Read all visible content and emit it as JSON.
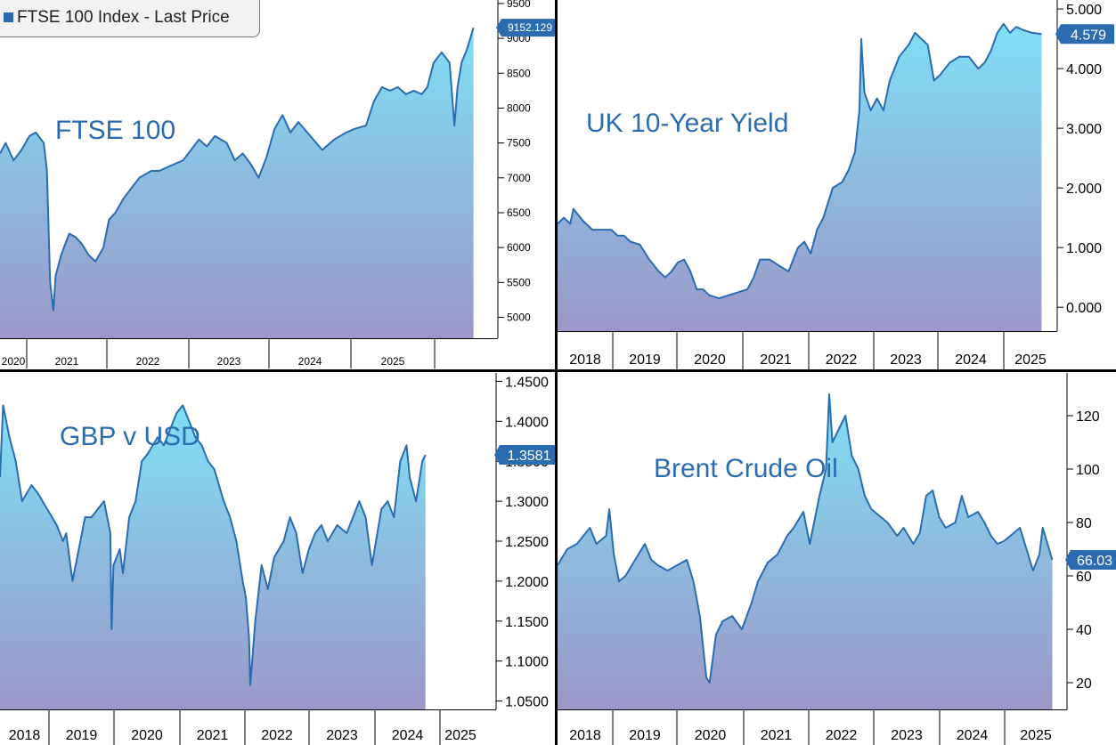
{
  "legend": {
    "label": "FTSE 100 Index - Last Price",
    "color": "#2b6cb0"
  },
  "style": {
    "line_color": "#2b6cb0",
    "fill_top": "#7fe0f5",
    "fill_bottom": "#9b97c8",
    "label_color": "#2b6cb0"
  },
  "chart_data": [
    {
      "type": "area",
      "title": "FTSE 100",
      "x_tick_labels": [
        "2020",
        "2021",
        "2022",
        "2023",
        "2024",
        "2025"
      ],
      "y_tick_labels": [
        "5000",
        "5500",
        "6000",
        "6500",
        "7000",
        "7500",
        "8000",
        "8500",
        "9000",
        "9500"
      ],
      "ylim": [
        4700,
        9550
      ],
      "last_value": "9152.129",
      "x_start": 2019.55,
      "x_end": 2025.5,
      "points": [
        [
          2019.55,
          7350
        ],
        [
          2019.62,
          7500
        ],
        [
          2019.72,
          7250
        ],
        [
          2019.82,
          7400
        ],
        [
          2019.92,
          7600
        ],
        [
          2020.0,
          7650
        ],
        [
          2020.1,
          7500
        ],
        [
          2020.14,
          7100
        ],
        [
          2020.18,
          5500
        ],
        [
          2020.22,
          5100
        ],
        [
          2020.25,
          5600
        ],
        [
          2020.32,
          5900
        ],
        [
          2020.42,
          6200
        ],
        [
          2020.5,
          6150
        ],
        [
          2020.58,
          6050
        ],
        [
          2020.66,
          5900
        ],
        [
          2020.75,
          5800
        ],
        [
          2020.85,
          6000
        ],
        [
          2020.92,
          6400
        ],
        [
          2021.0,
          6500
        ],
        [
          2021.1,
          6700
        ],
        [
          2021.2,
          6850
        ],
        [
          2021.3,
          7000
        ],
        [
          2021.45,
          7100
        ],
        [
          2021.55,
          7100
        ],
        [
          2021.65,
          7150
        ],
        [
          2021.75,
          7200
        ],
        [
          2021.85,
          7250
        ],
        [
          2021.95,
          7400
        ],
        [
          2022.05,
          7550
        ],
        [
          2022.15,
          7450
        ],
        [
          2022.25,
          7600
        ],
        [
          2022.4,
          7500
        ],
        [
          2022.5,
          7250
        ],
        [
          2022.6,
          7350
        ],
        [
          2022.7,
          7200
        ],
        [
          2022.8,
          7000
        ],
        [
          2022.9,
          7300
        ],
        [
          2023.0,
          7700
        ],
        [
          2023.1,
          7900
        ],
        [
          2023.2,
          7650
        ],
        [
          2023.3,
          7800
        ],
        [
          2023.45,
          7600
        ],
        [
          2023.6,
          7400
        ],
        [
          2023.75,
          7550
        ],
        [
          2023.9,
          7650
        ],
        [
          2024.0,
          7700
        ],
        [
          2024.15,
          7750
        ],
        [
          2024.25,
          8100
        ],
        [
          2024.35,
          8300
        ],
        [
          2024.45,
          8250
        ],
        [
          2024.55,
          8300
        ],
        [
          2024.65,
          8200
        ],
        [
          2024.75,
          8250
        ],
        [
          2024.85,
          8200
        ],
        [
          2024.92,
          8300
        ],
        [
          2025.0,
          8650
        ],
        [
          2025.1,
          8800
        ],
        [
          2025.2,
          8650
        ],
        [
          2025.26,
          7750
        ],
        [
          2025.3,
          8300
        ],
        [
          2025.35,
          8650
        ],
        [
          2025.42,
          8850
        ],
        [
          2025.5,
          9152
        ]
      ]
    },
    {
      "type": "area",
      "title": "UK 10-Year Yield",
      "x_tick_labels": [
        "2018",
        "2019",
        "2020",
        "2021",
        "2022",
        "2023",
        "2024",
        "2025"
      ],
      "y_tick_labels": [
        "0.000",
        "1.000",
        "2.000",
        "3.000",
        "4.000",
        "5.000"
      ],
      "ylim": [
        -0.4,
        5.15
      ],
      "last_value": "4.579",
      "x_start": 2017.95,
      "x_end": 2025.6,
      "points": [
        [
          2017.95,
          1.4
        ],
        [
          2018.05,
          1.5
        ],
        [
          2018.15,
          1.4
        ],
        [
          2018.2,
          1.65
        ],
        [
          2018.35,
          1.45
        ],
        [
          2018.5,
          1.3
        ],
        [
          2018.65,
          1.3
        ],
        [
          2018.8,
          1.3
        ],
        [
          2018.9,
          1.2
        ],
        [
          2019.0,
          1.2
        ],
        [
          2019.1,
          1.1
        ],
        [
          2019.25,
          1.05
        ],
        [
          2019.4,
          0.8
        ],
        [
          2019.55,
          0.6
        ],
        [
          2019.65,
          0.5
        ],
        [
          2019.75,
          0.6
        ],
        [
          2019.85,
          0.75
        ],
        [
          2019.95,
          0.8
        ],
        [
          2020.05,
          0.6
        ],
        [
          2020.15,
          0.3
        ],
        [
          2020.25,
          0.3
        ],
        [
          2020.35,
          0.2
        ],
        [
          2020.5,
          0.15
        ],
        [
          2020.65,
          0.2
        ],
        [
          2020.8,
          0.25
        ],
        [
          2020.95,
          0.3
        ],
        [
          2021.05,
          0.5
        ],
        [
          2021.15,
          0.8
        ],
        [
          2021.3,
          0.8
        ],
        [
          2021.45,
          0.7
        ],
        [
          2021.6,
          0.6
        ],
        [
          2021.75,
          1.0
        ],
        [
          2021.85,
          1.1
        ],
        [
          2021.95,
          0.9
        ],
        [
          2022.05,
          1.3
        ],
        [
          2022.15,
          1.5
        ],
        [
          2022.3,
          2.0
        ],
        [
          2022.45,
          2.1
        ],
        [
          2022.55,
          2.3
        ],
        [
          2022.65,
          2.6
        ],
        [
          2022.72,
          3.3
        ],
        [
          2022.75,
          4.5
        ],
        [
          2022.8,
          3.6
        ],
        [
          2022.9,
          3.3
        ],
        [
          2023.0,
          3.5
        ],
        [
          2023.1,
          3.3
        ],
        [
          2023.2,
          3.8
        ],
        [
          2023.35,
          4.2
        ],
        [
          2023.5,
          4.4
        ],
        [
          2023.6,
          4.6
        ],
        [
          2023.7,
          4.5
        ],
        [
          2023.8,
          4.4
        ],
        [
          2023.9,
          3.8
        ],
        [
          2024.0,
          3.9
        ],
        [
          2024.15,
          4.1
        ],
        [
          2024.3,
          4.2
        ],
        [
          2024.45,
          4.2
        ],
        [
          2024.6,
          4.0
        ],
        [
          2024.7,
          4.1
        ],
        [
          2024.8,
          4.3
        ],
        [
          2024.9,
          4.6
        ],
        [
          2025.0,
          4.75
        ],
        [
          2025.1,
          4.6
        ],
        [
          2025.2,
          4.7
        ],
        [
          2025.3,
          4.65
        ],
        [
          2025.45,
          4.6
        ],
        [
          2025.6,
          4.579
        ]
      ]
    },
    {
      "type": "area",
      "title": "GBP v USD",
      "x_tick_labels": [
        "2018",
        "2019",
        "2020",
        "2021",
        "2022",
        "2023",
        "2024",
        "2025"
      ],
      "y_tick_labels": [
        "1.0500",
        "1.1000",
        "1.1500",
        "1.2000",
        "1.2500",
        "1.3000",
        "1.3500",
        "1.4000",
        "1.4500"
      ],
      "ylim": [
        1.0395,
        1.4605
      ],
      "last_value": "1.3581",
      "x_start": 2017.95,
      "x_end": 2025.55,
      "points": [
        [
          2017.95,
          1.33
        ],
        [
          2018.0,
          1.42
        ],
        [
          2018.1,
          1.38
        ],
        [
          2018.2,
          1.35
        ],
        [
          2018.3,
          1.3
        ],
        [
          2018.45,
          1.32
        ],
        [
          2018.55,
          1.31
        ],
        [
          2018.7,
          1.29
        ],
        [
          2018.85,
          1.27
        ],
        [
          2018.95,
          1.25
        ],
        [
          2019.0,
          1.26
        ],
        [
          2019.1,
          1.2
        ],
        [
          2019.2,
          1.24
        ],
        [
          2019.3,
          1.28
        ],
        [
          2019.4,
          1.28
        ],
        [
          2019.5,
          1.29
        ],
        [
          2019.6,
          1.3
        ],
        [
          2019.7,
          1.26
        ],
        [
          2019.72,
          1.14
        ],
        [
          2019.75,
          1.22
        ],
        [
          2019.85,
          1.24
        ],
        [
          2019.9,
          1.21
        ],
        [
          2020.0,
          1.28
        ],
        [
          2020.1,
          1.3
        ],
        [
          2020.2,
          1.35
        ],
        [
          2020.3,
          1.36
        ],
        [
          2020.45,
          1.38
        ],
        [
          2020.55,
          1.37
        ],
        [
          2020.65,
          1.39
        ],
        [
          2020.75,
          1.41
        ],
        [
          2020.85,
          1.42
        ],
        [
          2020.95,
          1.4
        ],
        [
          2021.05,
          1.38
        ],
        [
          2021.15,
          1.37
        ],
        [
          2021.25,
          1.35
        ],
        [
          2021.35,
          1.34
        ],
        [
          2021.5,
          1.3
        ],
        [
          2021.6,
          1.28
        ],
        [
          2021.7,
          1.25
        ],
        [
          2021.8,
          1.2
        ],
        [
          2021.85,
          1.18
        ],
        [
          2021.9,
          1.13
        ],
        [
          2021.92,
          1.07
        ],
        [
          2022.0,
          1.15
        ],
        [
          2022.1,
          1.22
        ],
        [
          2022.2,
          1.19
        ],
        [
          2022.3,
          1.23
        ],
        [
          2022.45,
          1.25
        ],
        [
          2022.55,
          1.28
        ],
        [
          2022.65,
          1.26
        ],
        [
          2022.75,
          1.21
        ],
        [
          2022.85,
          1.24
        ],
        [
          2022.95,
          1.26
        ],
        [
          2023.05,
          1.27
        ],
        [
          2023.15,
          1.25
        ],
        [
          2023.3,
          1.27
        ],
        [
          2023.45,
          1.26
        ],
        [
          2023.55,
          1.28
        ],
        [
          2023.65,
          1.3
        ],
        [
          2023.75,
          1.28
        ],
        [
          2023.85,
          1.22
        ],
        [
          2024.0,
          1.29
        ],
        [
          2024.1,
          1.3
        ],
        [
          2024.2,
          1.28
        ],
        [
          2024.3,
          1.35
        ],
        [
          2024.4,
          1.37
        ],
        [
          2024.45,
          1.33
        ],
        [
          2024.55,
          1.3
        ],
        [
          2024.65,
          1.35
        ],
        [
          2024.7,
          1.358
        ]
      ]
    },
    {
      "type": "area",
      "title": "Brent Crude Oil",
      "x_tick_labels": [
        "2018",
        "2019",
        "2020",
        "2021",
        "2022",
        "2023",
        "2024",
        "2025"
      ],
      "y_tick_labels": [
        "20",
        "40",
        "60",
        "80",
        "100",
        "120"
      ],
      "ylim": [
        10,
        136
      ],
      "last_value": "66.03",
      "x_start": 2017.95,
      "x_end": 2025.6,
      "points": [
        [
          2017.95,
          64
        ],
        [
          2018.1,
          70
        ],
        [
          2018.25,
          72
        ],
        [
          2018.35,
          75
        ],
        [
          2018.45,
          78
        ],
        [
          2018.55,
          72
        ],
        [
          2018.7,
          75
        ],
        [
          2018.75,
          85
        ],
        [
          2018.82,
          68
        ],
        [
          2018.9,
          58
        ],
        [
          2019.0,
          60
        ],
        [
          2019.15,
          66
        ],
        [
          2019.3,
          72
        ],
        [
          2019.4,
          66
        ],
        [
          2019.5,
          64
        ],
        [
          2019.65,
          62
        ],
        [
          2019.8,
          64
        ],
        [
          2019.95,
          66
        ],
        [
          2020.05,
          58
        ],
        [
          2020.15,
          45
        ],
        [
          2020.25,
          22
        ],
        [
          2020.3,
          20
        ],
        [
          2020.4,
          38
        ],
        [
          2020.5,
          43
        ],
        [
          2020.65,
          45
        ],
        [
          2020.8,
          40
        ],
        [
          2020.95,
          50
        ],
        [
          2021.05,
          58
        ],
        [
          2021.2,
          65
        ],
        [
          2021.35,
          68
        ],
        [
          2021.5,
          75
        ],
        [
          2021.6,
          78
        ],
        [
          2021.75,
          84
        ],
        [
          2021.85,
          72
        ],
        [
          2022.0,
          90
        ],
        [
          2022.1,
          100
        ],
        [
          2022.15,
          128
        ],
        [
          2022.2,
          110
        ],
        [
          2022.3,
          115
        ],
        [
          2022.4,
          120
        ],
        [
          2022.5,
          105
        ],
        [
          2022.6,
          100
        ],
        [
          2022.7,
          90
        ],
        [
          2022.8,
          85
        ],
        [
          2022.95,
          82
        ],
        [
          2023.05,
          80
        ],
        [
          2023.2,
          75
        ],
        [
          2023.3,
          78
        ],
        [
          2023.45,
          72
        ],
        [
          2023.55,
          76
        ],
        [
          2023.65,
          90
        ],
        [
          2023.75,
          92
        ],
        [
          2023.85,
          82
        ],
        [
          2023.95,
          78
        ],
        [
          2024.1,
          80
        ],
        [
          2024.2,
          90
        ],
        [
          2024.3,
          82
        ],
        [
          2024.45,
          84
        ],
        [
          2024.55,
          80
        ],
        [
          2024.65,
          75
        ],
        [
          2024.75,
          72
        ],
        [
          2024.85,
          73
        ],
        [
          2025.0,
          76
        ],
        [
          2025.1,
          78
        ],
        [
          2025.2,
          70
        ],
        [
          2025.3,
          62
        ],
        [
          2025.4,
          68
        ],
        [
          2025.45,
          78
        ],
        [
          2025.55,
          70
        ],
        [
          2025.6,
          66
        ]
      ]
    }
  ]
}
